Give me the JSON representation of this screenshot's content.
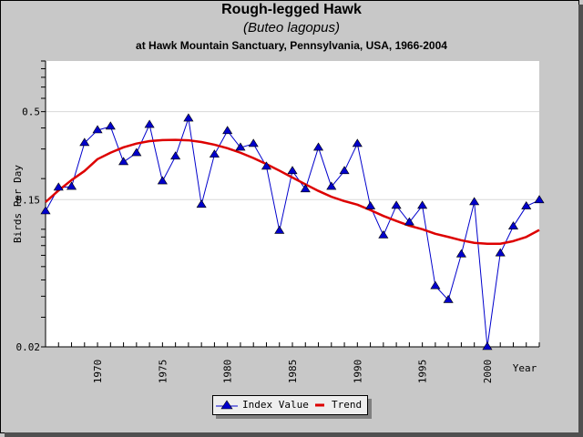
{
  "title": "Rough-legged Hawk",
  "subtitle": "(Buteo lagopus)",
  "location": "at Hawk Mountain Sanctuary, Pennsylvania, USA, 1966-2004",
  "legend": {
    "index_label": "Index Value",
    "trend_label": "Trend"
  },
  "colors": {
    "index": "#0000cc",
    "trend": "#dd0000",
    "background": "#c8c8c8",
    "plot": "#ffffff"
  },
  "chart_data": {
    "type": "line",
    "title": "Rough-legged Hawk",
    "subtitle": "(Buteo lagopus) at Hawk Mountain Sanctuary, Pennsylvania, USA, 1966-2004",
    "xlabel": "Year",
    "ylabel": "Birds Per Day",
    "yscale": "log",
    "ylim": [
      0.02,
      1.0
    ],
    "xlim": [
      1966,
      2004
    ],
    "y_ticks": [
      "0.5",
      "0.15",
      "0.02"
    ],
    "x_ticks": [
      "1970",
      "1975",
      "1980",
      "1985",
      "1990",
      "1995",
      "2000"
    ],
    "grid": "horizontal at labeled y ticks",
    "legend_position": "bottom",
    "x": [
      1966,
      1967,
      1968,
      1969,
      1970,
      1971,
      1972,
      1973,
      1974,
      1975,
      1976,
      1977,
      1978,
      1979,
      1980,
      1981,
      1982,
      1983,
      1984,
      1985,
      1986,
      1987,
      1988,
      1989,
      1990,
      1991,
      1992,
      1993,
      1994,
      1995,
      1996,
      1997,
      1998,
      1999,
      2000,
      2001,
      2002,
      2003,
      2004
    ],
    "series": [
      {
        "name": "Index Value",
        "marker": "triangle",
        "values": [
          0.128,
          0.177,
          0.179,
          0.326,
          0.388,
          0.408,
          0.251,
          0.284,
          0.418,
          0.193,
          0.271,
          0.456,
          0.14,
          0.278,
          0.384,
          0.306,
          0.322,
          0.236,
          0.098,
          0.222,
          0.173,
          0.306,
          0.179,
          0.222,
          0.322,
          0.137,
          0.092,
          0.138,
          0.11,
          0.138,
          0.046,
          0.038,
          0.071,
          0.145,
          0.02,
          0.072,
          0.104,
          0.137,
          0.149
        ]
      },
      {
        "name": "Trend",
        "marker": "none",
        "values": [
          0.145,
          0.17,
          0.196,
          0.222,
          0.261,
          0.285,
          0.307,
          0.323,
          0.334,
          0.339,
          0.34,
          0.338,
          0.33,
          0.318,
          0.303,
          0.285,
          0.265,
          0.244,
          0.223,
          0.203,
          0.185,
          0.169,
          0.156,
          0.147,
          0.14,
          0.13,
          0.12,
          0.112,
          0.105,
          0.1,
          0.094,
          0.09,
          0.086,
          0.083,
          0.082,
          0.082,
          0.085,
          0.09,
          0.099
        ]
      }
    ]
  }
}
